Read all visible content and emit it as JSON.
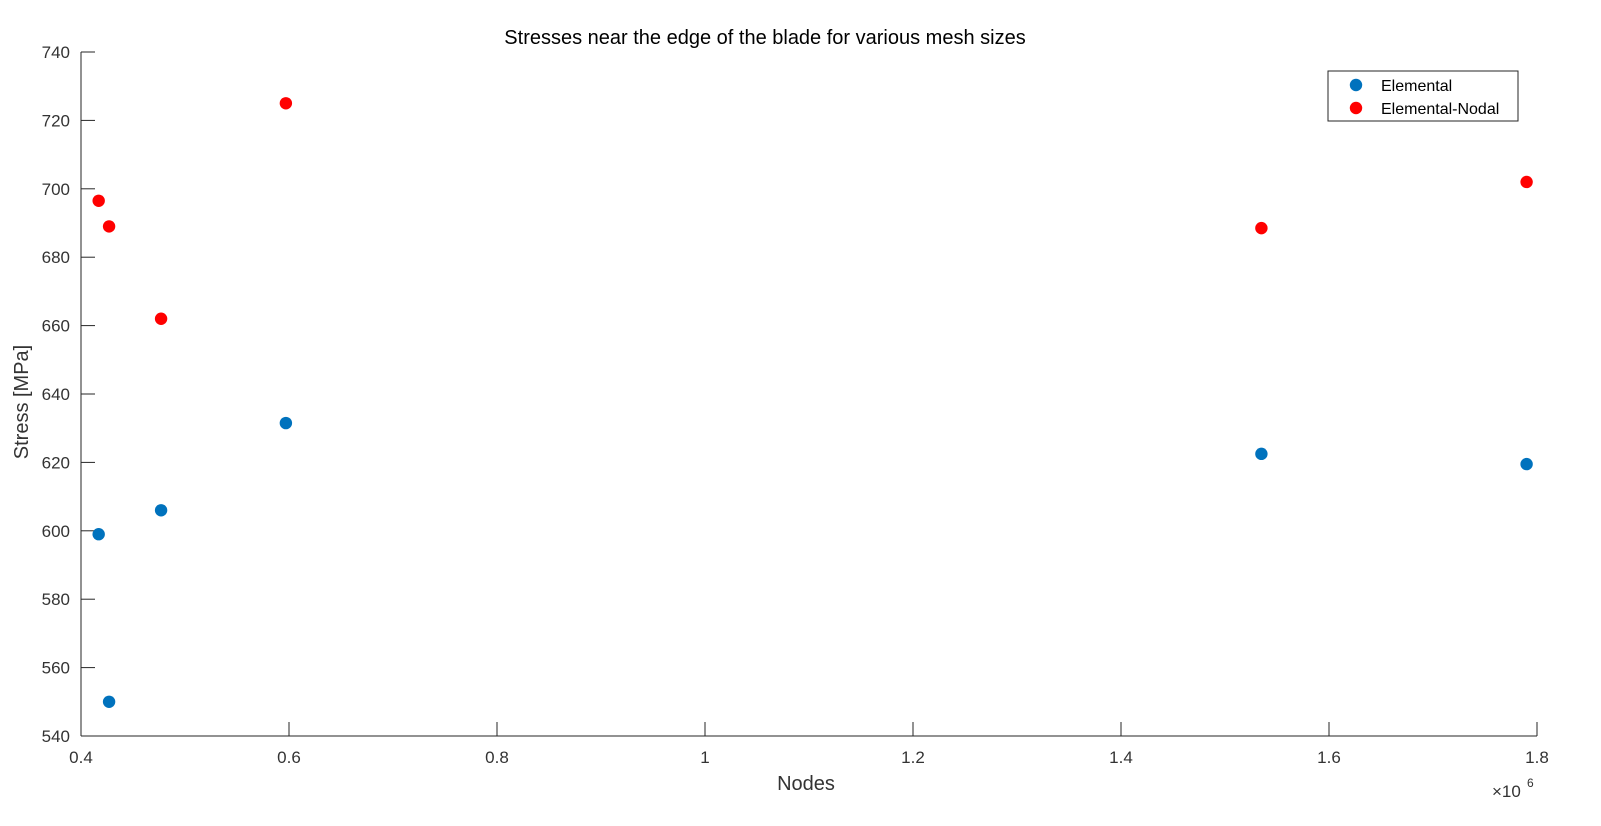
{
  "chart_data": {
    "type": "scatter",
    "title": "Stresses near the edge of the blade for various mesh sizes",
    "xlabel": "Nodes",
    "ylabel": "Stress [MPa]",
    "xlim": [
      400000,
      1800000
    ],
    "ylim": [
      540,
      740
    ],
    "x_ticks": [
      400000,
      600000,
      800000,
      1000000,
      1200000,
      1400000,
      1600000,
      1800000
    ],
    "x_tick_labels": [
      "0.4",
      "0.6",
      "0.8",
      "1",
      "1.2",
      "1.4",
      "1.6",
      "1.8"
    ],
    "y_ticks": [
      540,
      560,
      580,
      600,
      620,
      640,
      660,
      680,
      700,
      720,
      740
    ],
    "x_exponent": {
      "base": "×10",
      "power": "6"
    },
    "grid": false,
    "legend_position": "top-right",
    "series": [
      {
        "name": "Elemental",
        "color": "#0072BD",
        "points": [
          {
            "x": 417000,
            "y": 599
          },
          {
            "x": 427000,
            "y": 550
          },
          {
            "x": 477000,
            "y": 606
          },
          {
            "x": 597000,
            "y": 631.5
          },
          {
            "x": 1535000,
            "y": 622.5
          },
          {
            "x": 1790000,
            "y": 619.5
          }
        ]
      },
      {
        "name": "Elemental-Nodal",
        "color": "#FF0000",
        "points": [
          {
            "x": 417000,
            "y": 696.5
          },
          {
            "x": 427000,
            "y": 689
          },
          {
            "x": 477000,
            "y": 662
          },
          {
            "x": 597000,
            "y": 725
          },
          {
            "x": 1535000,
            "y": 688.5
          },
          {
            "x": 1790000,
            "y": 702
          }
        ]
      }
    ]
  }
}
